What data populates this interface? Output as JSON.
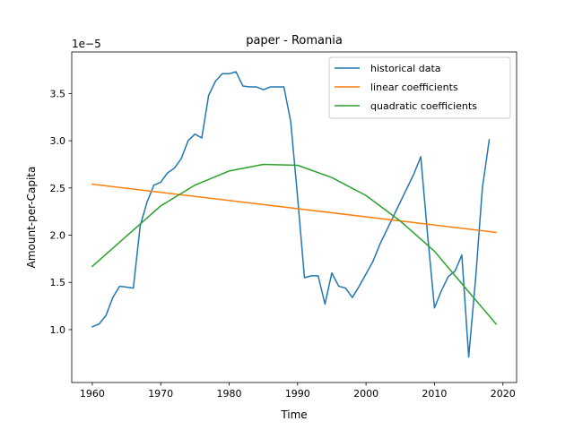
{
  "chart_data": {
    "type": "line",
    "title": "paper - Romania",
    "xlabel": "Time",
    "ylabel": "Amount-per-Capita",
    "y_offset_text": "1e−5",
    "xlim": [
      1957,
      2022
    ],
    "ylim": [
      0.44,
      3.94
    ],
    "x_ticks": [
      1960,
      1970,
      1980,
      1990,
      2000,
      2010,
      2020
    ],
    "y_ticks": [
      1.0,
      1.5,
      2.0,
      2.5,
      3.0,
      3.5
    ],
    "y_tick_labels": [
      "1.0",
      "1.5",
      "2.0",
      "2.5",
      "3.0",
      "3.5"
    ],
    "grid": false,
    "legend_position": "top-right",
    "series": [
      {
        "name": "historical data",
        "color": "#1f77b4",
        "x": [
          1960,
          1961,
          1962,
          1963,
          1964,
          1965,
          1966,
          1967,
          1968,
          1969,
          1970,
          1971,
          1972,
          1973,
          1974,
          1975,
          1976,
          1977,
          1978,
          1979,
          1980,
          1981,
          1982,
          1983,
          1984,
          1985,
          1986,
          1987,
          1988,
          1989,
          1990,
          1991,
          1992,
          1993,
          1994,
          1995,
          1996,
          1997,
          1998,
          1999,
          2000,
          2001,
          2002,
          2003,
          2004,
          2005,
          2006,
          2007,
          2008,
          2009,
          2010,
          2011,
          2012,
          2013,
          2014,
          2015,
          2016,
          2017,
          2018
        ],
        "y": [
          1.03,
          1.06,
          1.15,
          1.34,
          1.46,
          1.45,
          1.44,
          2.1,
          2.35,
          2.53,
          2.56,
          2.66,
          2.71,
          2.81,
          3.0,
          3.07,
          3.03,
          3.48,
          3.63,
          3.71,
          3.71,
          3.73,
          3.58,
          3.57,
          3.57,
          3.54,
          3.57,
          3.57,
          3.57,
          3.2,
          2.4,
          1.55,
          1.57,
          1.57,
          1.27,
          1.6,
          1.46,
          1.44,
          1.34,
          1.46,
          1.59,
          1.72,
          1.9,
          2.05,
          2.2,
          2.35,
          2.5,
          2.65,
          2.83,
          2.0,
          1.23,
          1.41,
          1.56,
          1.62,
          1.79,
          0.71,
          1.53,
          2.5,
          3.01
        ]
      },
      {
        "name": "linear coefficients",
        "color": "#ff7f0e",
        "x": [
          1960,
          2019
        ],
        "y": [
          2.54,
          2.03
        ]
      },
      {
        "name": "quadratic coefficients",
        "color": "#2ca02c",
        "x": [
          1960,
          1965,
          1970,
          1975,
          1980,
          1985,
          1990,
          1995,
          2000,
          2005,
          2010,
          2015,
          2019
        ],
        "y": [
          1.67,
          1.99,
          2.31,
          2.53,
          2.68,
          2.75,
          2.74,
          2.61,
          2.42,
          2.15,
          1.83,
          1.4,
          1.06
        ]
      }
    ]
  }
}
